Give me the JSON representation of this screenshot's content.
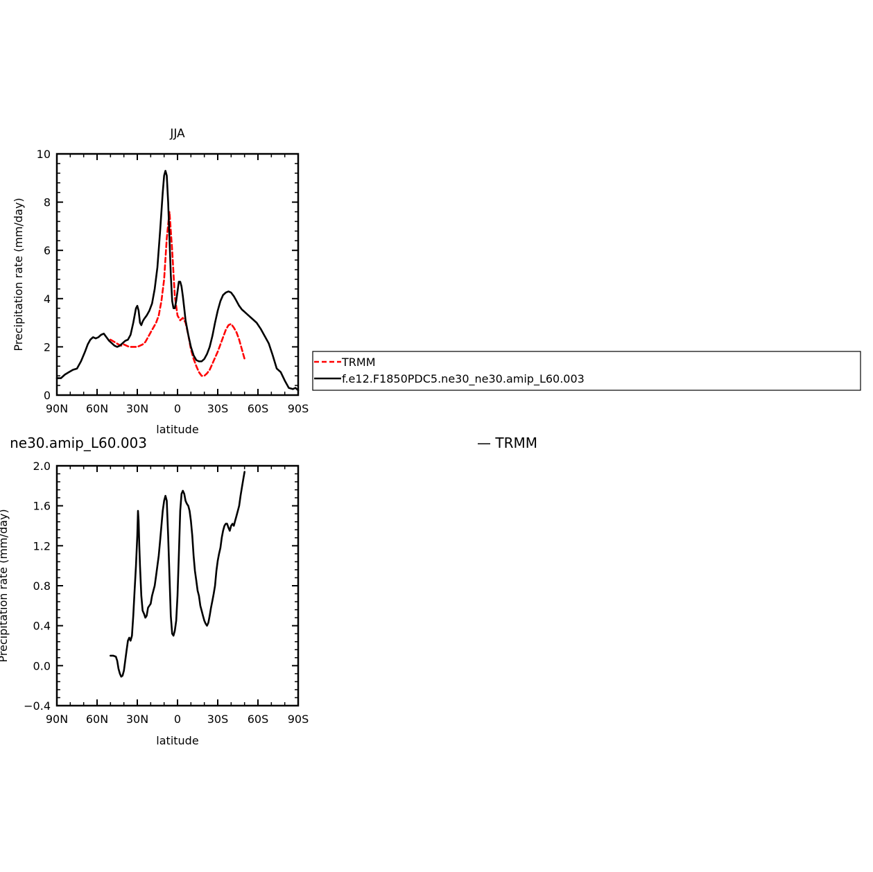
{
  "colors": {
    "trmm": "#ff0000",
    "model": "#000000",
    "axis": "#000000"
  },
  "chart_data": [
    {
      "type": "line",
      "title": "JJA",
      "xlabel": "latitude",
      "ylabel": "Precipitation rate (mm/day)",
      "xlim": [
        -90,
        90
      ],
      "ylim": [
        0,
        10
      ],
      "x_ticks": [
        -90,
        -60,
        -30,
        0,
        30,
        60,
        90
      ],
      "x_tick_labels": [
        "90N",
        "60N",
        "30N",
        "0",
        "30S",
        "60S",
        "90S"
      ],
      "y_ticks": [
        0,
        2,
        4,
        6,
        8,
        10
      ],
      "y_tick_labels": [
        "0",
        "2",
        "4",
        "6",
        "8",
        "10"
      ],
      "legend": {
        "position": "right",
        "entries": [
          {
            "name": "TRMM",
            "style": "dashed",
            "color": "#ff0000"
          },
          {
            "name": "f.e12.F1850PDC5.ne30_ne30.amip_L60.003",
            "style": "solid",
            "color": "#000000"
          }
        ]
      },
      "series": [
        {
          "name": "TRMM",
          "style": "dashed",
          "color": "#ff0000",
          "x": [
            -50,
            -47,
            -44,
            -42,
            -40,
            -38,
            -36,
            -34,
            -32,
            -30,
            -28,
            -26,
            -24,
            -22,
            -20,
            -18,
            -16,
            -14,
            -12,
            -10,
            -8,
            -6,
            -4,
            -2,
            0,
            2,
            4,
            6,
            8,
            10,
            12,
            14,
            16,
            18,
            20,
            22,
            24,
            26,
            28,
            30,
            32,
            34,
            36,
            38,
            40,
            42,
            44,
            46,
            48,
            50
          ],
          "y": [
            2.3,
            2.2,
            2.1,
            2.05,
            2.1,
            2.05,
            2.0,
            2.0,
            2.0,
            2.0,
            2.05,
            2.1,
            2.2,
            2.4,
            2.6,
            2.8,
            3.0,
            3.3,
            3.9,
            4.8,
            6.5,
            7.6,
            6.0,
            4.1,
            3.3,
            3.1,
            3.2,
            3.0,
            2.5,
            1.9,
            1.5,
            1.2,
            0.95,
            0.8,
            0.8,
            0.9,
            1.05,
            1.3,
            1.55,
            1.8,
            2.1,
            2.4,
            2.7,
            2.9,
            2.95,
            2.8,
            2.6,
            2.3,
            1.9,
            1.5
          ]
        },
        {
          "name": "f.e12.F1850PDC5.ne30_ne30.amip_L60.003",
          "style": "solid",
          "color": "#000000",
          "x": [
            -90,
            -87,
            -84,
            -81,
            -78,
            -75,
            -72,
            -69,
            -67,
            -65,
            -63,
            -61,
            -59,
            -57,
            -55,
            -53,
            -51,
            -49,
            -47,
            -45,
            -43,
            -41,
            -39,
            -37,
            -35,
            -33,
            -31,
            -30,
            -29,
            -28,
            -27,
            -26,
            -25,
            -23,
            -21,
            -19,
            -17,
            -15,
            -13,
            -11,
            -10,
            -9,
            -8,
            -7,
            -6,
            -5,
            -4,
            -3,
            -2,
            -1,
            0,
            1,
            2,
            3,
            4,
            5,
            6,
            8,
            10,
            12,
            14,
            16,
            18,
            20,
            22,
            24,
            26,
            28,
            30,
            32,
            34,
            36,
            38,
            40,
            42,
            44,
            46,
            48,
            50,
            53,
            56,
            59,
            62,
            65,
            68,
            71,
            74,
            77,
            80,
            83,
            86,
            88,
            90
          ],
          "y": [
            0.7,
            0.7,
            0.85,
            0.95,
            1.05,
            1.1,
            1.4,
            1.8,
            2.1,
            2.3,
            2.4,
            2.35,
            2.4,
            2.5,
            2.55,
            2.4,
            2.25,
            2.15,
            2.05,
            2.0,
            2.05,
            2.15,
            2.25,
            2.3,
            2.5,
            3.0,
            3.6,
            3.7,
            3.5,
            3.0,
            2.9,
            3.05,
            3.15,
            3.3,
            3.5,
            3.8,
            4.4,
            5.3,
            6.8,
            8.4,
            9.1,
            9.3,
            9.1,
            8.0,
            6.5,
            5.0,
            3.9,
            3.6,
            3.6,
            3.9,
            4.3,
            4.7,
            4.7,
            4.5,
            4.1,
            3.6,
            3.1,
            2.5,
            2.0,
            1.65,
            1.45,
            1.4,
            1.4,
            1.5,
            1.7,
            2.0,
            2.45,
            3.0,
            3.5,
            3.9,
            4.15,
            4.25,
            4.3,
            4.25,
            4.1,
            3.9,
            3.7,
            3.55,
            3.45,
            3.3,
            3.15,
            3.0,
            2.75,
            2.45,
            2.15,
            1.65,
            1.1,
            0.95,
            0.6,
            0.3,
            0.25,
            0.3,
            0.2
          ]
        }
      ]
    },
    {
      "type": "line",
      "title": "ne30.amip_L60.003",
      "title_right": "— TRMM",
      "xlabel": "latitude",
      "ylabel": "Precipitation rate (mm/day)",
      "xlim": [
        -90,
        90
      ],
      "ylim": [
        -0.4,
        2.0
      ],
      "x_ticks": [
        -90,
        -60,
        -30,
        0,
        30,
        60,
        90
      ],
      "x_tick_labels": [
        "90N",
        "60N",
        "30N",
        "0",
        "30S",
        "60S",
        "90S"
      ],
      "y_ticks": [
        -0.4,
        0,
        0.4,
        0.8,
        1.2,
        1.6,
        2.0
      ],
      "y_tick_labels": [
        "−0.4",
        "0.0",
        "0.4",
        "0.8",
        "1.2",
        "1.6",
        "2.0"
      ],
      "series": [
        {
          "name": "",
          "style": "solid",
          "color": "#000000",
          "x": [
            -50,
            -48,
            -46,
            -45,
            -44,
            -43,
            -42,
            -41,
            -40,
            -39,
            -38,
            -37,
            -36,
            -35,
            -34,
            -33,
            -32,
            -31,
            -30,
            -29.5,
            -29,
            -28.5,
            -28,
            -27,
            -26,
            -25,
            -24,
            -23,
            -22,
            -21,
            -20,
            -19,
            -18,
            -17,
            -16,
            -15,
            -14,
            -13,
            -12,
            -11,
            -10,
            -9,
            -8,
            -7,
            -6,
            -5,
            -4,
            -3,
            -2,
            -1,
            0,
            1,
            2,
            3,
            4,
            5,
            6,
            7,
            8,
            9,
            10,
            11,
            12,
            13,
            14,
            15,
            16,
            17,
            18,
            19,
            20,
            21,
            22,
            23,
            24,
            25,
            26,
            27,
            28,
            29,
            30,
            31,
            32,
            33,
            34,
            35,
            36,
            37,
            38,
            39,
            40,
            41,
            42,
            43,
            44,
            45,
            46,
            47,
            48,
            49,
            50
          ],
          "y": [
            0.1,
            0.1,
            0.09,
            0.05,
            -0.03,
            -0.08,
            -0.11,
            -0.1,
            -0.05,
            0.05,
            0.15,
            0.25,
            0.28,
            0.25,
            0.3,
            0.5,
            0.75,
            1.0,
            1.3,
            1.55,
            1.45,
            1.2,
            1.0,
            0.7,
            0.55,
            0.52,
            0.48,
            0.5,
            0.58,
            0.6,
            0.62,
            0.7,
            0.75,
            0.8,
            0.9,
            1.0,
            1.1,
            1.25,
            1.4,
            1.55,
            1.65,
            1.7,
            1.65,
            1.3,
            0.9,
            0.5,
            0.32,
            0.3,
            0.35,
            0.45,
            0.7,
            1.1,
            1.55,
            1.72,
            1.75,
            1.72,
            1.65,
            1.62,
            1.6,
            1.55,
            1.45,
            1.3,
            1.1,
            0.95,
            0.85,
            0.75,
            0.7,
            0.6,
            0.55,
            0.5,
            0.45,
            0.42,
            0.4,
            0.43,
            0.5,
            0.58,
            0.65,
            0.72,
            0.8,
            0.95,
            1.05,
            1.12,
            1.18,
            1.28,
            1.35,
            1.4,
            1.42,
            1.42,
            1.38,
            1.35,
            1.4,
            1.42,
            1.4,
            1.45,
            1.5,
            1.55,
            1.6,
            1.7,
            1.78,
            1.86,
            1.94
          ]
        }
      ]
    }
  ]
}
